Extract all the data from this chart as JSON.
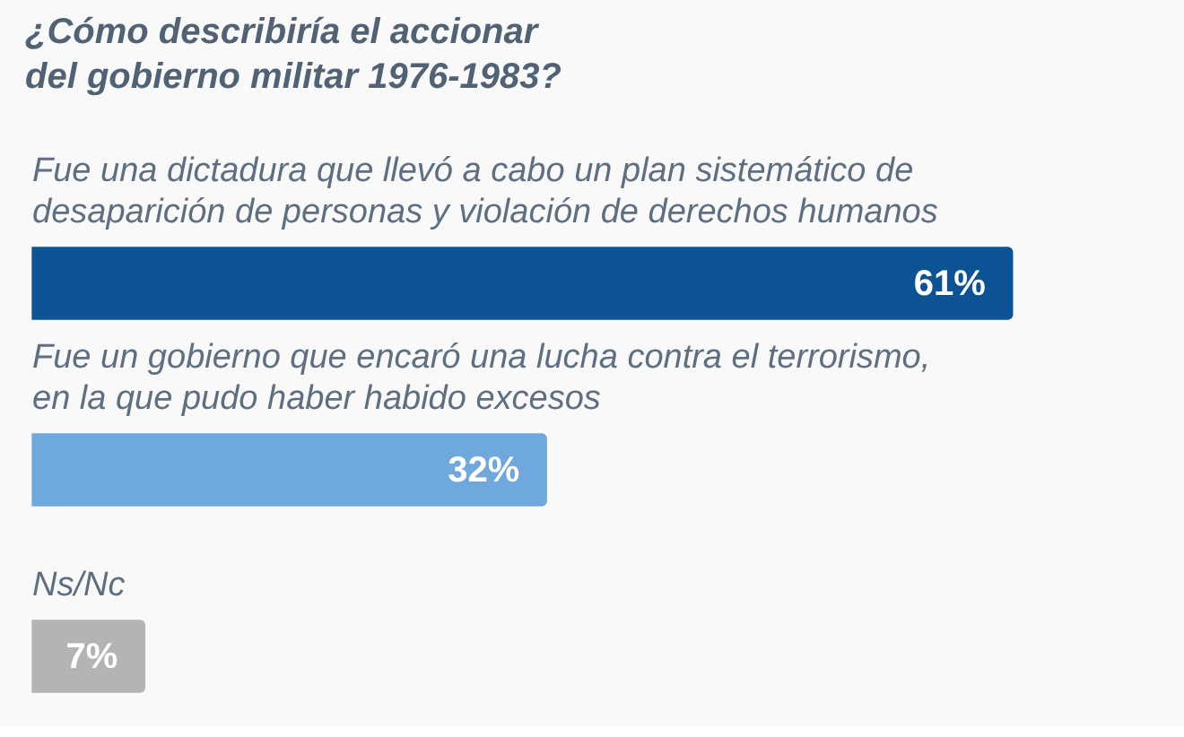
{
  "chart_data": {
    "type": "bar",
    "orientation": "horizontal",
    "title": "¿Cómo describiría el accionar del gobierno militar 1976-1983?",
    "categories": [
      "Fue una dictadura que llevó a cabo un plan sistemático de desaparición de personas y violación de derechos humanos",
      "Fue un gobierno que encaró una lucha contra el terrorismo, en la que pudo haber habido excesos",
      "Ns/Nc"
    ],
    "values": [
      61,
      32,
      7
    ],
    "colors": [
      "#0b5394",
      "#6fa8dc",
      "#b4b4b4"
    ],
    "value_labels": [
      "61%",
      "32%",
      "7%"
    ],
    "tick_labels": "y"
  }
}
